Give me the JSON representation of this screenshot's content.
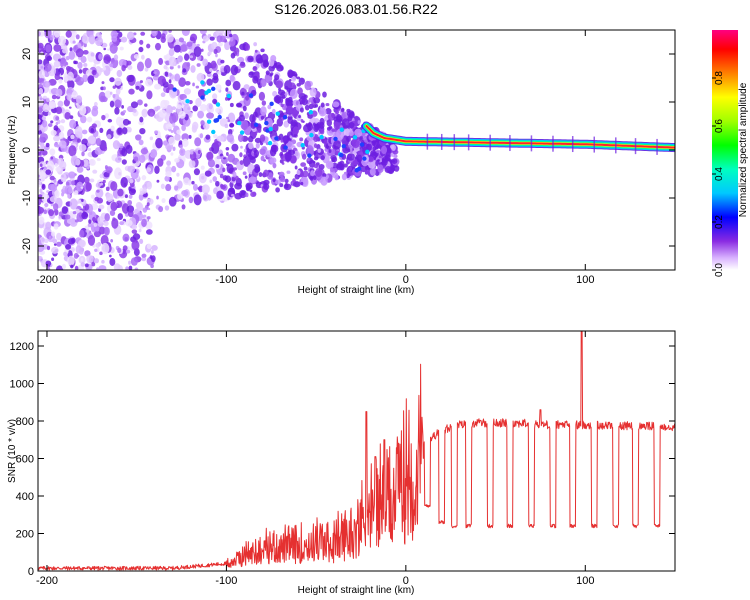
{
  "title": "S126.2026.083.01.56.R22",
  "colors": {
    "snr_line": "#e53030",
    "scatter": "#7b2be0",
    "ridge": "#ff2030"
  },
  "chart_data": [
    {
      "type": "heatmap",
      "name": "spectrogram",
      "xlabel": "Height of straight line (km)",
      "ylabel": "Frequency (Hz)",
      "xlim": [
        -205,
        150
      ],
      "ylim": [
        -25,
        25
      ],
      "xticks": [
        "-200",
        "-100",
        "0",
        "100"
      ],
      "xtick_values": [
        -200,
        -100,
        0,
        100
      ],
      "yticks": [
        "20",
        "10",
        "0",
        "-10",
        "-20"
      ],
      "ytick_values": [
        20,
        10,
        0,
        -10,
        -20
      ],
      "colorbar": {
        "label": "Normalized spectral amplitude",
        "range": [
          0,
          1
        ],
        "ticks": [
          "0.0",
          "0.2",
          "0.4",
          "0.6",
          "0.8"
        ],
        "tick_values": [
          0.0,
          0.2,
          0.4,
          0.6,
          0.8
        ]
      },
      "carrier_line": {
        "x_start": -22,
        "x_end": 150,
        "frequency_hz": [
          [
            -22,
            5
          ],
          [
            -18,
            3.5
          ],
          [
            -12,
            2.5
          ],
          [
            0,
            1.8
          ],
          [
            50,
            1.5
          ],
          [
            100,
            1.2
          ],
          [
            150,
            0.5
          ]
        ]
      }
    },
    {
      "type": "line",
      "name": "snr",
      "xlabel": "Height of straight line (km)",
      "ylabel": "SNR (10 * v/v)",
      "xlim": [
        -205,
        150
      ],
      "ylim": [
        0,
        1280
      ],
      "xticks": [
        "-200",
        "-100",
        "0",
        "100"
      ],
      "xtick_values": [
        -200,
        -100,
        0,
        100
      ],
      "yticks": [
        "1200",
        "1000",
        "800",
        "600",
        "400",
        "200",
        "0"
      ],
      "ytick_values": [
        1200,
        1000,
        800,
        600,
        400,
        200,
        0
      ],
      "envelope": [
        {
          "x": -205,
          "y": 15
        },
        {
          "x": -130,
          "y": 15
        },
        {
          "x": -100,
          "y": 40
        },
        {
          "x": -90,
          "y": 100
        },
        {
          "x": -75,
          "y": 150
        },
        {
          "x": -60,
          "y": 150
        },
        {
          "x": -50,
          "y": 180
        },
        {
          "x": -40,
          "y": 170
        },
        {
          "x": -30,
          "y": 240
        },
        {
          "x": -20,
          "y": 370
        },
        {
          "x": -10,
          "y": 450
        },
        {
          "x": 0,
          "y": 580
        },
        {
          "x": 10,
          "y": 680
        },
        {
          "x": 20,
          "y": 750
        },
        {
          "x": 30,
          "y": 780
        },
        {
          "x": 40,
          "y": 790
        },
        {
          "x": 60,
          "y": 790
        },
        {
          "x": 80,
          "y": 780
        },
        {
          "x": 100,
          "y": 780
        },
        {
          "x": 120,
          "y": 775
        },
        {
          "x": 150,
          "y": 770
        }
      ],
      "dropouts": [
        {
          "x": 12,
          "level": 350
        },
        {
          "x": 20,
          "level": 260
        },
        {
          "x": 27,
          "level": 240
        },
        {
          "x": 35,
          "level": 240
        },
        {
          "x": 47,
          "level": 240
        },
        {
          "x": 58,
          "level": 240
        },
        {
          "x": 70,
          "level": 240
        },
        {
          "x": 82,
          "level": 240
        },
        {
          "x": 93,
          "level": 240
        },
        {
          "x": 105,
          "level": 240
        },
        {
          "x": 117,
          "level": 240
        },
        {
          "x": 128,
          "level": 240
        },
        {
          "x": 140,
          "level": 240
        }
      ],
      "spikes": [
        {
          "x": -22,
          "y": 850
        },
        {
          "x": -17,
          "y": 610
        },
        {
          "x": -12,
          "y": 700
        },
        {
          "x": 75,
          "y": 860
        },
        {
          "x": 98,
          "y": 1280
        }
      ]
    }
  ]
}
